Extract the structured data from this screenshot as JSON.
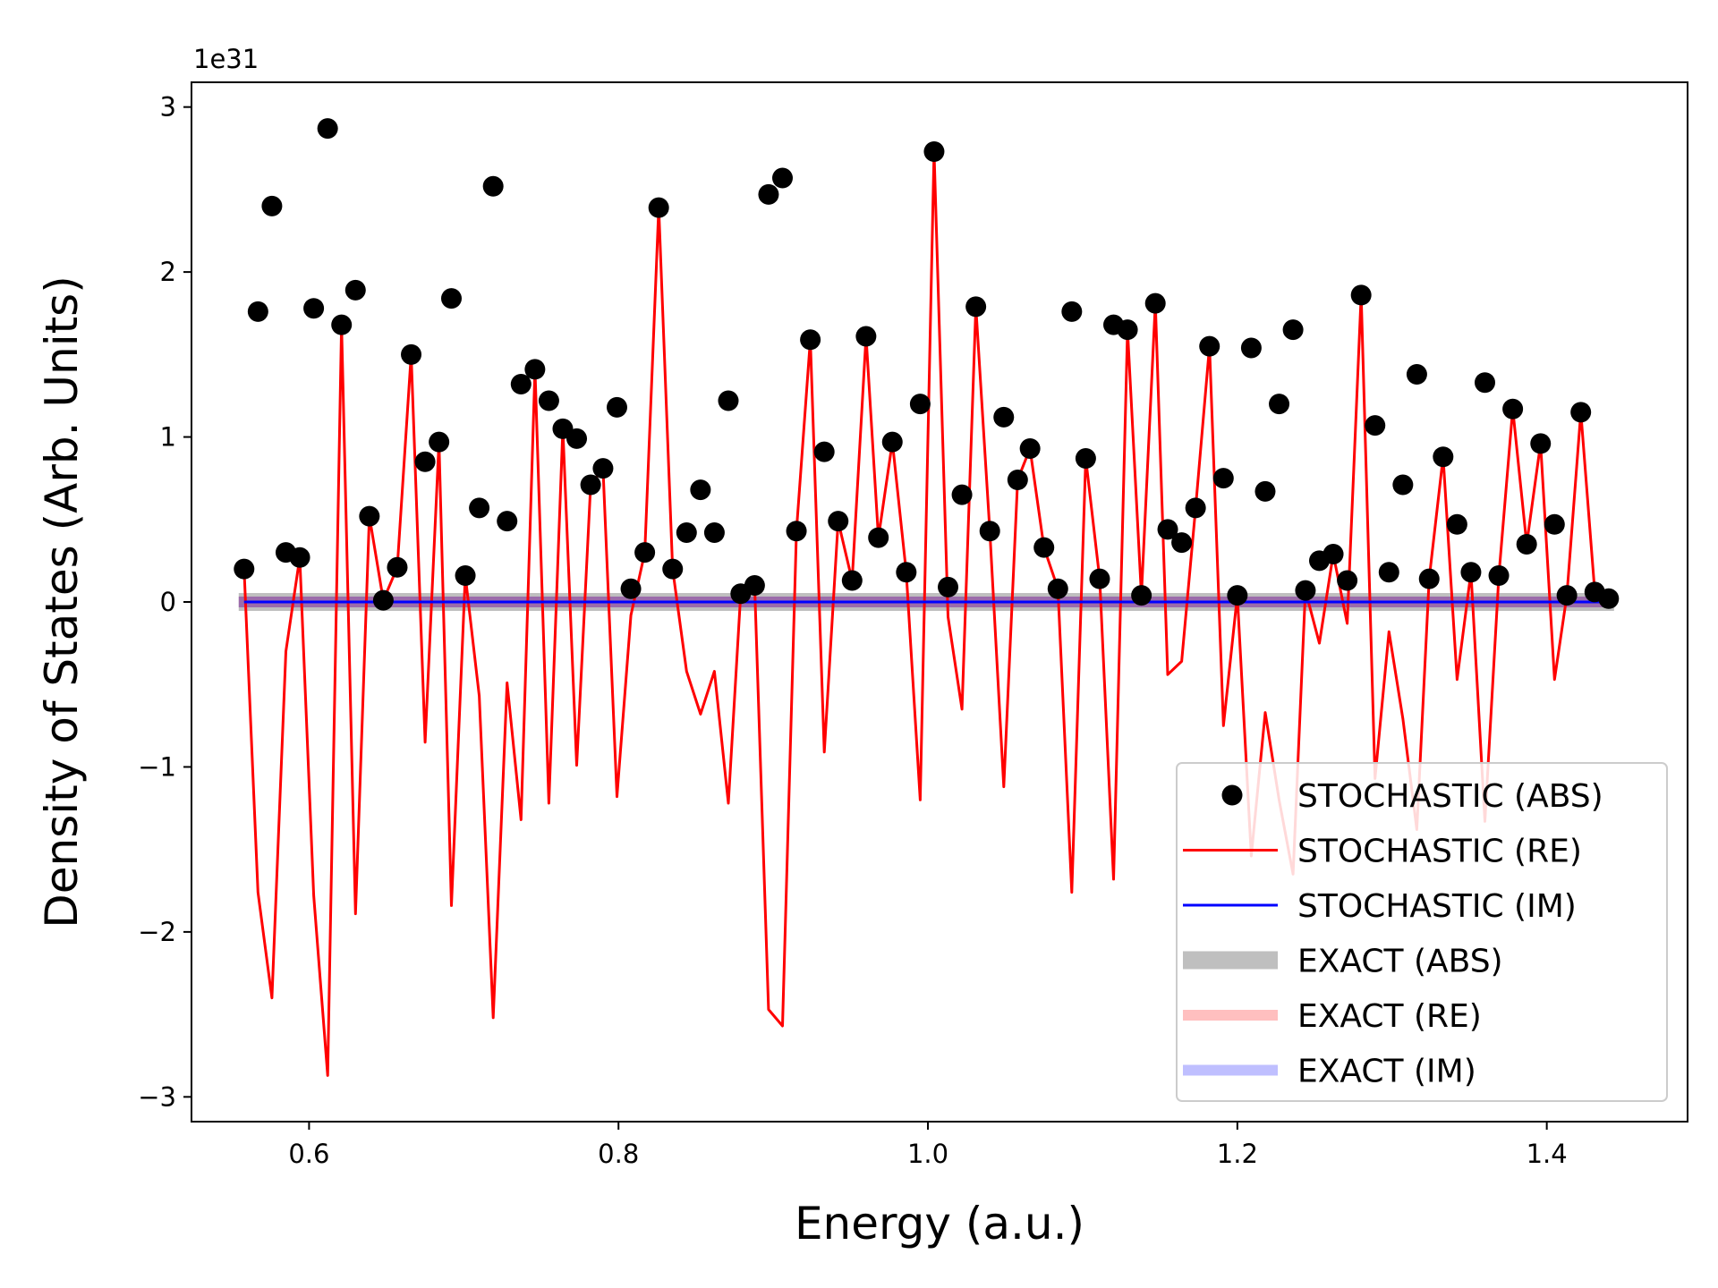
{
  "chart_data": {
    "type": "line",
    "xlabel": "Energy (a.u.)",
    "ylabel": "Density of States (Arb. Units)",
    "offset_label": "1e31",
    "scale": 1e+31,
    "xlim": [
      0.524,
      1.491
    ],
    "ylim": [
      -3.15,
      3.15
    ],
    "x_ticks": [
      0.6,
      0.8,
      1.0,
      1.2,
      1.4
    ],
    "x_tick_labels": [
      "0.6",
      "0.8",
      "1.0",
      "1.2",
      "1.4"
    ],
    "y_ticks": [
      -3,
      -2,
      -1,
      0,
      1,
      2,
      3
    ],
    "y_tick_labels": [
      "−3",
      "−2",
      "−1",
      "0",
      "1",
      "2",
      "3"
    ],
    "legend_position": "lower-right",
    "x": [
      0.558,
      0.567,
      0.576,
      0.585,
      0.594,
      0.603,
      0.612,
      0.621,
      0.63,
      0.639,
      0.648,
      0.657,
      0.666,
      0.675,
      0.684,
      0.692,
      0.701,
      0.71,
      0.719,
      0.728,
      0.737,
      0.746,
      0.755,
      0.764,
      0.773,
      0.782,
      0.79,
      0.799,
      0.808,
      0.817,
      0.826,
      0.835,
      0.844,
      0.853,
      0.862,
      0.871,
      0.879,
      0.888,
      0.897,
      0.906,
      0.915,
      0.924,
      0.933,
      0.942,
      0.951,
      0.96,
      0.968,
      0.977,
      0.986,
      0.995,
      1.004,
      1.013,
      1.022,
      1.031,
      1.04,
      1.049,
      1.058,
      1.066,
      1.075,
      1.084,
      1.093,
      1.102,
      1.111,
      1.12,
      1.129,
      1.138,
      1.147,
      1.155,
      1.164,
      1.173,
      1.182,
      1.191,
      1.2,
      1.209,
      1.218,
      1.227,
      1.236,
      1.244,
      1.253,
      1.262,
      1.271,
      1.28,
      1.289,
      1.298,
      1.307,
      1.316,
      1.324,
      1.333,
      1.342,
      1.351,
      1.36,
      1.369,
      1.378,
      1.387,
      1.396,
      1.405,
      1.413,
      1.422,
      1.431,
      1.44
    ],
    "series": [
      {
        "name": "STOCHASTIC (ABS)",
        "kind": "scatter",
        "color": "#000000",
        "values": [
          0.2,
          1.76,
          2.4,
          0.3,
          0.27,
          1.78,
          2.87,
          1.68,
          1.89,
          0.52,
          0.01,
          0.21,
          1.5,
          0.85,
          0.97,
          1.84,
          0.16,
          0.57,
          2.52,
          0.49,
          1.32,
          1.41,
          1.22,
          1.05,
          0.99,
          0.71,
          0.81,
          1.18,
          0.08,
          0.3,
          2.39,
          0.2,
          0.42,
          0.68,
          0.42,
          1.22,
          0.05,
          0.1,
          2.47,
          2.57,
          0.43,
          1.59,
          0.91,
          0.49,
          0.13,
          1.61,
          0.39,
          0.97,
          0.18,
          1.2,
          2.73,
          0.09,
          0.65,
          1.79,
          0.43,
          1.12,
          0.74,
          0.93,
          0.33,
          0.08,
          1.76,
          0.87,
          0.14,
          1.68,
          1.65,
          0.04,
          1.81,
          0.44,
          0.36,
          0.57,
          1.55,
          0.75,
          0.04,
          1.54,
          0.67,
          1.2,
          1.65,
          0.07,
          0.25,
          0.29,
          0.13,
          1.86,
          1.07,
          0.18,
          0.71,
          1.38,
          0.14,
          0.88,
          0.47,
          0.18,
          1.33,
          0.16,
          1.17,
          0.35,
          0.96,
          0.47,
          0.04,
          1.15,
          0.06,
          0.02
        ]
      },
      {
        "name": "STOCHASTIC (RE)",
        "kind": "line",
        "color": "#ff0000",
        "values": [
          0.2,
          -1.76,
          -2.4,
          -0.3,
          0.27,
          -1.78,
          -2.87,
          1.68,
          -1.89,
          0.52,
          0.01,
          0.21,
          1.5,
          -0.85,
          0.97,
          -1.84,
          0.16,
          -0.57,
          -2.52,
          -0.49,
          -1.32,
          1.41,
          -1.22,
          1.05,
          -0.99,
          0.71,
          0.81,
          -1.18,
          -0.08,
          0.3,
          2.39,
          0.2,
          -0.42,
          -0.68,
          -0.42,
          -1.22,
          0.05,
          0.1,
          -2.47,
          -2.57,
          0.43,
          1.59,
          -0.91,
          0.49,
          0.13,
          1.61,
          0.39,
          0.97,
          0.18,
          -1.2,
          2.73,
          -0.09,
          -0.65,
          1.79,
          0.43,
          -1.12,
          0.74,
          0.93,
          0.33,
          0.08,
          -1.76,
          0.87,
          0.14,
          -1.68,
          1.65,
          0.04,
          1.81,
          -0.44,
          -0.36,
          0.57,
          1.55,
          -0.75,
          0.04,
          -1.54,
          -0.67,
          -1.2,
          -1.65,
          0.07,
          -0.25,
          0.29,
          -0.13,
          1.86,
          -1.07,
          -0.18,
          -0.71,
          -1.38,
          0.14,
          0.88,
          -0.47,
          0.18,
          -1.33,
          0.16,
          1.17,
          0.35,
          0.96,
          -0.47,
          0.04,
          1.15,
          0.06,
          0.02
        ]
      },
      {
        "name": "STOCHASTIC (IM)",
        "kind": "line",
        "color": "#0000ff",
        "values": "zero"
      },
      {
        "name": "EXACT (ABS)",
        "kind": "line",
        "color": "#808080",
        "values": "zero"
      },
      {
        "name": "EXACT (RE)",
        "kind": "line",
        "color": "#ff0000",
        "values": "zero"
      },
      {
        "name": "EXACT (IM)",
        "kind": "line",
        "color": "#0000ff",
        "values": "zero"
      }
    ]
  }
}
